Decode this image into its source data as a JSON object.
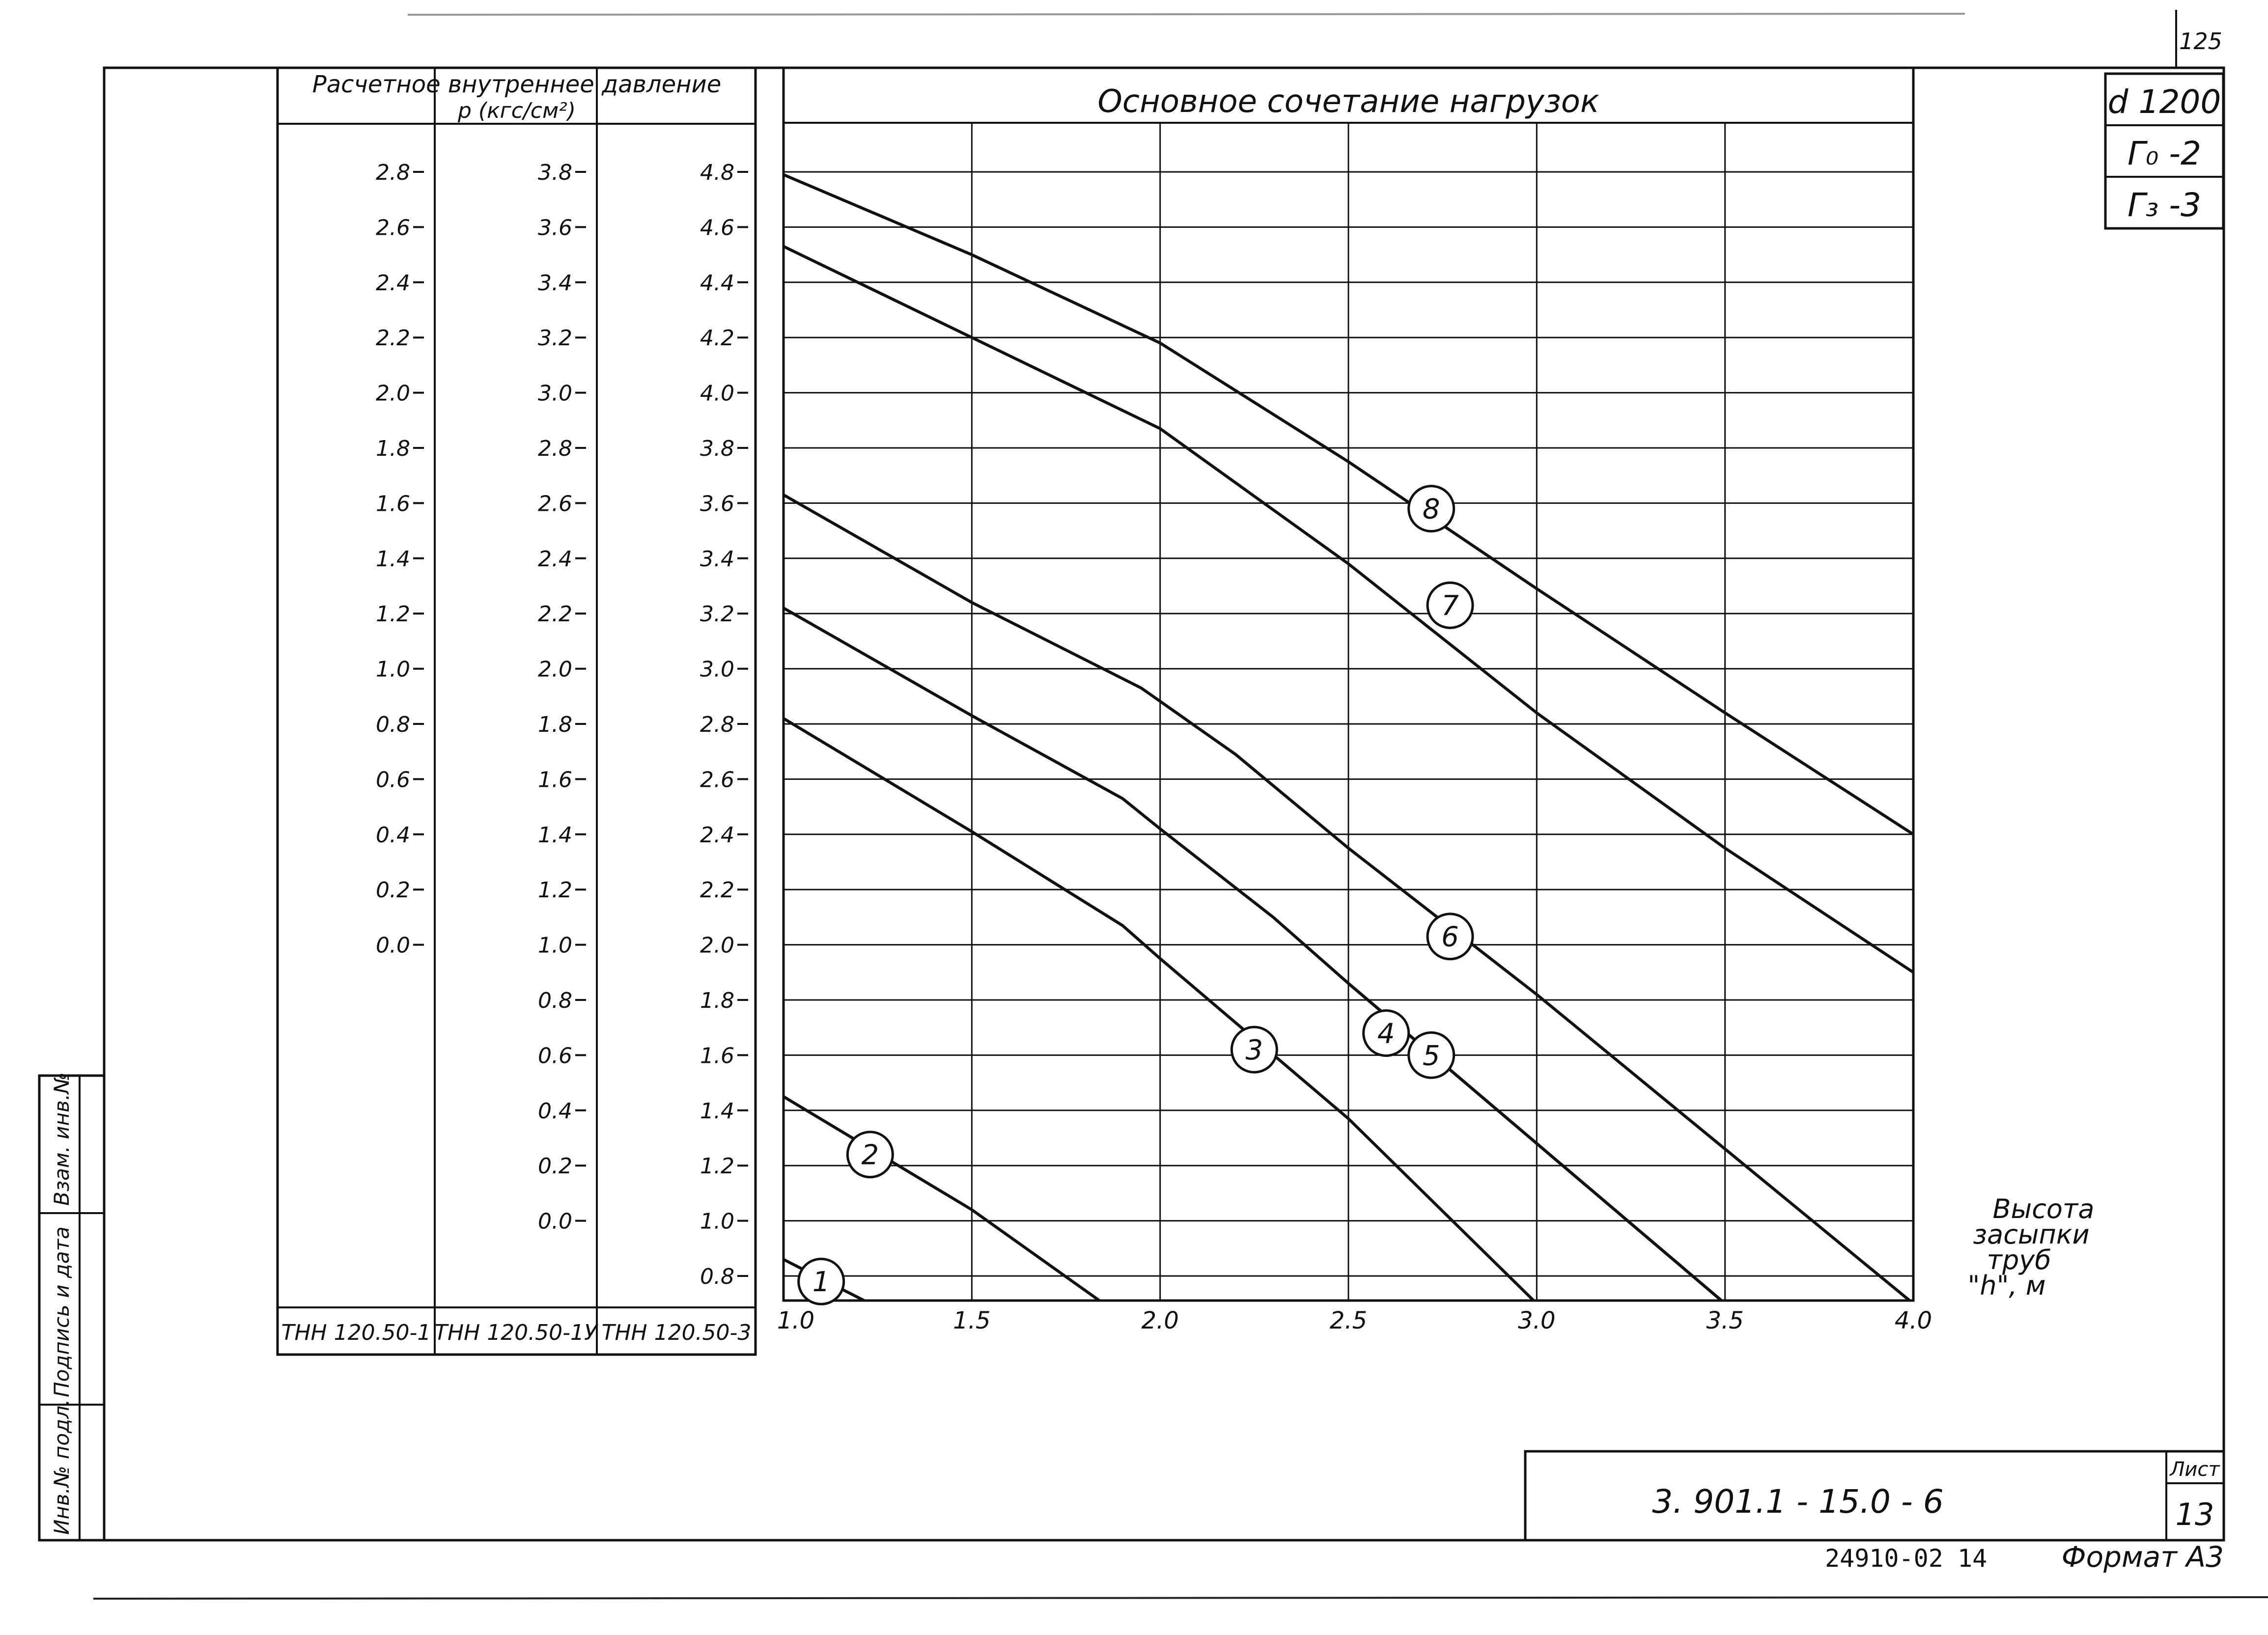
{
  "sheet": {
    "page_number": "125",
    "stamp_d": "d 1200",
    "stamp_g0": "Г₀ -2",
    "stamp_g3": "Г₃ -3",
    "designation": "3. 901.1 - 15.0 - 6",
    "sheet_label": "Лист",
    "sheet_number": "13",
    "inventory": "24910-02",
    "inventory_num": "14",
    "format": "Формат А3",
    "side_inv": "Инв.№ подл.",
    "side_sign": "Подпись и дата",
    "side_vzam": "Взам. инв.№"
  },
  "pressure_panel": {
    "title_line1": "Расчетное внутреннее давление",
    "title_line2": "р (кгс/см²)",
    "columns": [
      {
        "name": "ТНН 120.50-1",
        "labels": [
          "2.8",
          "2.6",
          "2.4",
          "2.2",
          "2.0",
          "1.8",
          "1.6",
          "1.4",
          "1.2",
          "1.0",
          "0.8",
          "0.6",
          "0.4",
          "0.2",
          "0.0"
        ]
      },
      {
        "name": "ТНН 120.50-1У",
        "labels": [
          "3.8",
          "3.6",
          "3.4",
          "3.2",
          "3.0",
          "2.8",
          "2.6",
          "2.4",
          "2.2",
          "2.0",
          "1.8",
          "1.6",
          "1.4",
          "1.2",
          "1.0",
          "0.8",
          "0.6",
          "0.4",
          "0.2",
          "0.0"
        ]
      },
      {
        "name": "ТНН 120.50-3",
        "labels": [
          "4.8",
          "4.6",
          "4.4",
          "4.2",
          "4.0",
          "3.8",
          "3.6",
          "3.4",
          "3.2",
          "3.0",
          "2.8",
          "2.6",
          "2.4",
          "2.2",
          "2.0",
          "1.8",
          "1.6",
          "1.4",
          "1.2",
          "1.0",
          "0.8"
        ]
      }
    ]
  },
  "chart_data": {
    "type": "line",
    "title": "Основное сочетание нагрузок",
    "xlabel": "Высота засыпки труб \"h\", м",
    "ylabel": "",
    "xlim": [
      1.0,
      4.0
    ],
    "ylim": [
      0.7,
      5.0
    ],
    "x_ticks": [
      "1.0",
      "1.5",
      "2.0",
      "2.5",
      "3.0",
      "3.5",
      "4.0"
    ],
    "grid": true,
    "series": [
      {
        "name": "1",
        "label_at": [
          1.1,
          0.78
        ],
        "points": [
          [
            1.0,
            0.86
          ],
          [
            1.23,
            0.7
          ]
        ]
      },
      {
        "name": "2",
        "label_at": [
          1.23,
          1.24
        ],
        "points": [
          [
            1.0,
            1.45
          ],
          [
            1.5,
            1.04
          ],
          [
            1.85,
            0.7
          ]
        ]
      },
      {
        "name": "3",
        "label_at": [
          2.25,
          1.62
        ],
        "points": [
          [
            1.0,
            2.82
          ],
          [
            1.5,
            2.41
          ],
          [
            1.9,
            2.07
          ],
          [
            2.0,
            1.95
          ],
          [
            2.5,
            1.37
          ],
          [
            3.0,
            0.7
          ]
        ]
      },
      {
        "name": "4",
        "label_at": [
          2.6,
          1.68
        ],
        "points": [
          [
            1.0,
            3.22
          ],
          [
            1.5,
            2.83
          ],
          [
            1.9,
            2.53
          ],
          [
            2.0,
            2.42
          ],
          [
            2.3,
            2.1
          ],
          [
            2.5,
            1.86
          ],
          [
            3.0,
            1.28
          ],
          [
            3.5,
            0.7
          ]
        ]
      },
      {
        "name": "5",
        "label_at": [
          2.72,
          1.6
        ],
        "points": [
          [
            2.5,
            1.86
          ],
          [
            3.0,
            1.28
          ],
          [
            3.5,
            0.7
          ]
        ]
      },
      {
        "name": "6",
        "label_at": [
          2.77,
          2.03
        ],
        "points": [
          [
            1.0,
            3.63
          ],
          [
            1.5,
            3.24
          ],
          [
            1.95,
            2.93
          ],
          [
            2.2,
            2.69
          ],
          [
            2.5,
            2.35
          ],
          [
            3.0,
            1.82
          ],
          [
            3.5,
            1.26
          ],
          [
            4.0,
            0.7
          ]
        ]
      },
      {
        "name": "7",
        "label_at": [
          2.77,
          3.23
        ],
        "points": [
          [
            1.0,
            4.53
          ],
          [
            1.5,
            4.2
          ],
          [
            2.0,
            3.87
          ],
          [
            2.5,
            3.38
          ],
          [
            3.0,
            2.84
          ],
          [
            3.5,
            2.35
          ],
          [
            4.0,
            1.9
          ]
        ]
      },
      {
        "name": "8",
        "label_at": [
          2.72,
          3.58
        ],
        "points": [
          [
            1.0,
            4.79
          ],
          [
            1.5,
            4.5
          ],
          [
            2.0,
            4.18
          ],
          [
            2.5,
            3.75
          ],
          [
            3.0,
            3.29
          ],
          [
            3.5,
            2.84
          ],
          [
            4.0,
            2.4
          ]
        ]
      }
    ]
  }
}
